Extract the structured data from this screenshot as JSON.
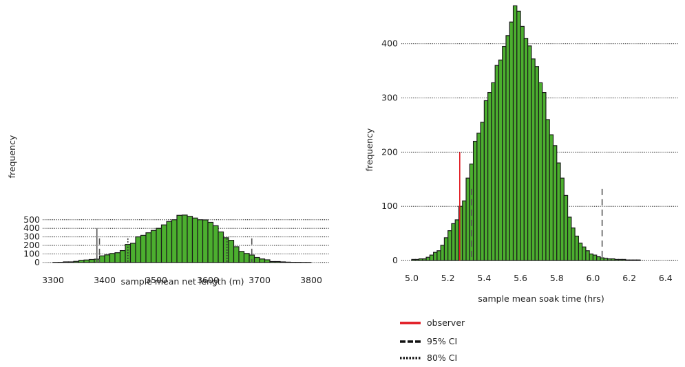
{
  "colors": {
    "bar_fill": "#4caf2f",
    "bar_edge": "#1a1a1a",
    "observer": "#e0171f",
    "ci_line": "#555555",
    "grid": "#000000"
  },
  "legend": {
    "items": [
      {
        "label": "observer",
        "style": "solid-red"
      },
      {
        "label": "95% CI",
        "style": "dashed"
      },
      {
        "label": "80% CI",
        "style": "dotted"
      }
    ]
  },
  "chart_data": [
    {
      "type": "bar",
      "subtype": "histogram",
      "title": "",
      "xlabel": "sample mean net length (m)",
      "ylabel": "frequency",
      "xlim": [
        3300,
        3800
      ],
      "ylim": [
        0,
        560
      ],
      "xticks": [
        3300,
        3400,
        3500,
        3600,
        3700,
        3800
      ],
      "yticks": [
        0,
        100,
        200,
        300,
        400,
        500
      ],
      "grid": "horizontal dotted",
      "bin_width": 10,
      "bin_start": 3300,
      "values": [
        2,
        3,
        8,
        8,
        14,
        26,
        30,
        36,
        40,
        78,
        90,
        106,
        115,
        140,
        212,
        225,
        300,
        318,
        348,
        375,
        400,
        440,
        480,
        500,
        552,
        555,
        540,
        520,
        500,
        498,
        470,
        430,
        358,
        290,
        260,
        185,
        130,
        106,
        88,
        60,
        42,
        32,
        12,
        12,
        8,
        5,
        3,
        3,
        2,
        2
      ],
      "vertical_lines": {
        "observer": 3385,
        "ci95": [
          3390,
          3685
        ],
        "ci80": [
          3445,
          3637
        ]
      }
    },
    {
      "type": "bar",
      "subtype": "histogram",
      "title": "",
      "xlabel": "sample mean soak time (hrs)",
      "ylabel": "frequency",
      "xlim": [
        5.0,
        6.45
      ],
      "ylim": [
        0,
        470
      ],
      "xticks": [
        "5.0",
        "5.2",
        "5.4",
        "5.6",
        "5.8",
        "6.0",
        "6.2",
        "6.4"
      ],
      "yticks": [
        0,
        100,
        200,
        300,
        400
      ],
      "grid": "horizontal dotted",
      "bin_width": 0.02,
      "bin_start": 5.0,
      "values": [
        2,
        2,
        3,
        3,
        6,
        10,
        15,
        18,
        28,
        42,
        55,
        68,
        75,
        100,
        110,
        152,
        178,
        220,
        235,
        255,
        295,
        310,
        328,
        360,
        370,
        395,
        415,
        440,
        470,
        460,
        432,
        410,
        396,
        372,
        358,
        328,
        310,
        260,
        232,
        212,
        180,
        152,
        120,
        80,
        60,
        45,
        32,
        25,
        18,
        12,
        10,
        7,
        5,
        4,
        3,
        3,
        2,
        2,
        2,
        1,
        1,
        1,
        1
      ],
      "vertical_lines": {
        "observer": 5.265,
        "ci95": [
          5.33,
          6.05
        ],
        "ci80": [
          5.33,
          6.05
        ]
      }
    }
  ]
}
